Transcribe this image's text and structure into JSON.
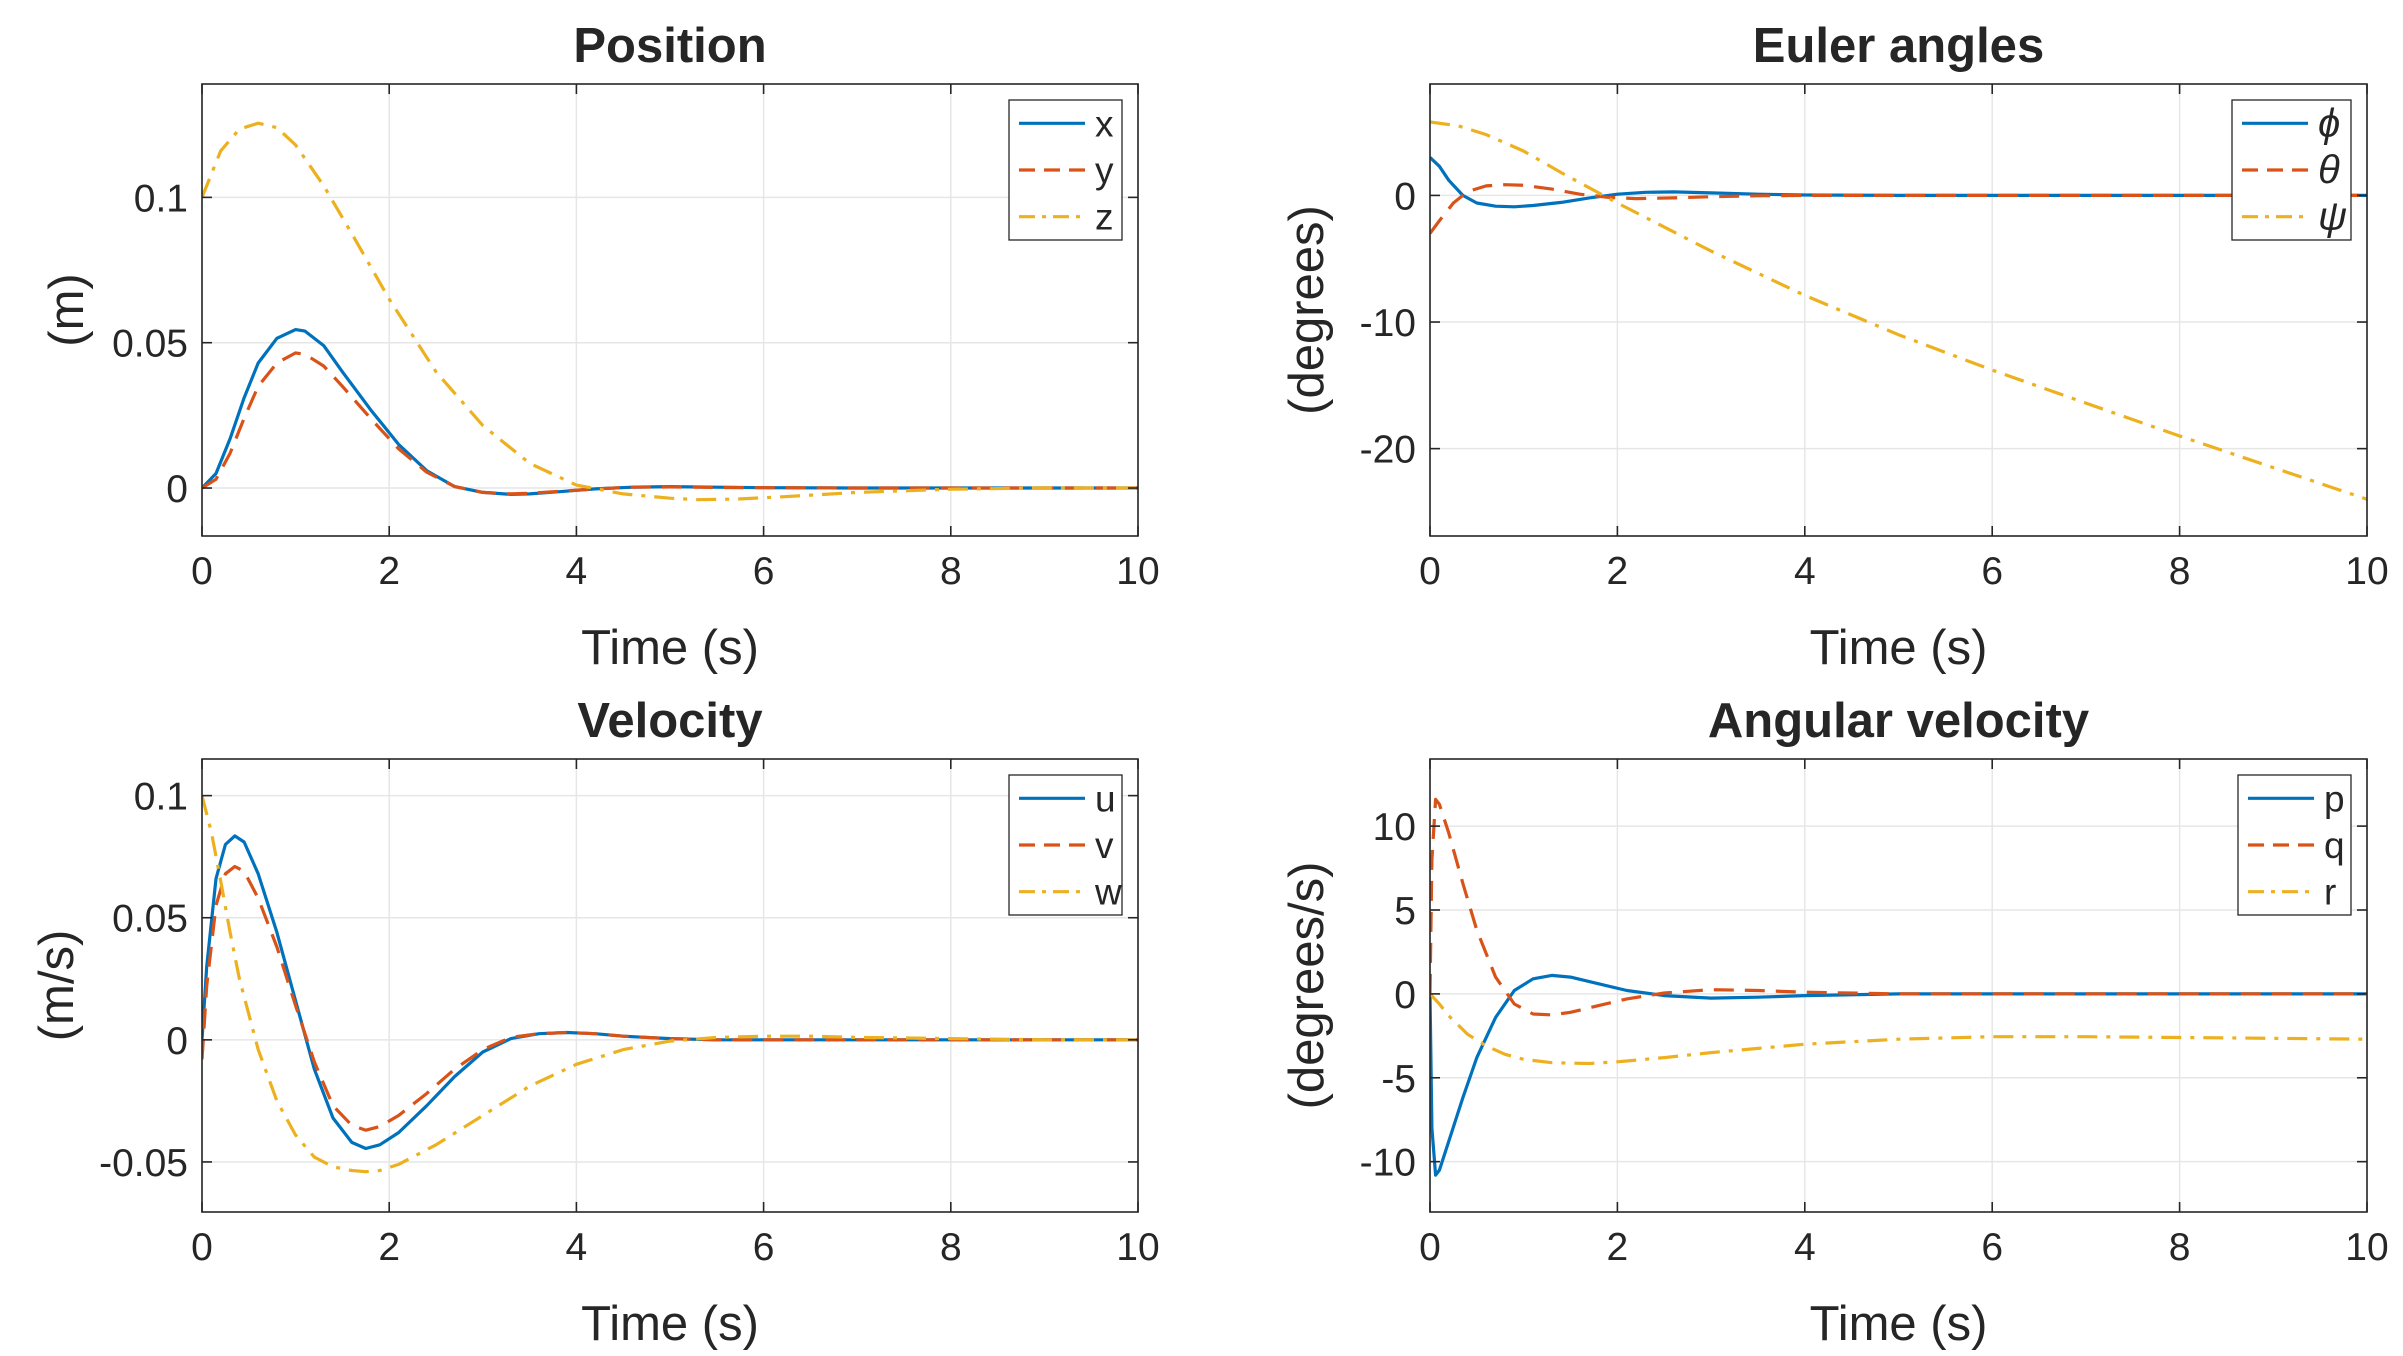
{
  "colors": {
    "series": [
      "#0072BD",
      "#D95319",
      "#EDB120"
    ],
    "axis": "#262626",
    "grid": "#e6e6e6"
  },
  "chart_data": [
    {
      "id": "position",
      "type": "line",
      "title": "Position",
      "xlabel": "Time (s)",
      "ylabel": "(m)",
      "xlim": [
        0,
        10
      ],
      "ylim": [
        -0.0165,
        0.139
      ],
      "xticks": [
        0,
        2,
        4,
        6,
        8,
        10
      ],
      "yticks": [
        0,
        0.05,
        0.1
      ],
      "xtick_labels": [
        "0",
        "2",
        "4",
        "6",
        "8",
        "10"
      ],
      "ytick_labels": [
        "0",
        "0.05",
        "0.1"
      ],
      "grid": true,
      "legend": "top-right",
      "series": [
        {
          "name": "x",
          "style": "solid",
          "x": [
            0,
            0.15,
            0.3,
            0.45,
            0.6,
            0.8,
            1.0,
            1.1,
            1.3,
            1.5,
            1.8,
            2.1,
            2.4,
            2.7,
            3.0,
            3.3,
            3.5,
            3.8,
            4.2,
            4.6,
            5.0,
            5.5,
            6.0,
            7.0,
            8.0,
            9.0,
            10.0
          ],
          "values": [
            0,
            0.005,
            0.017,
            0.031,
            0.043,
            0.0515,
            0.0545,
            0.054,
            0.049,
            0.04,
            0.027,
            0.015,
            0.006,
            0.0005,
            -0.0015,
            -0.0022,
            -0.002,
            -0.0013,
            -0.0003,
            0.0003,
            0.0005,
            0.0003,
            0.0001,
            0,
            0,
            0,
            0
          ]
        },
        {
          "name": "y",
          "style": "dashed",
          "x": [
            0,
            0.15,
            0.3,
            0.45,
            0.6,
            0.8,
            1.0,
            1.1,
            1.3,
            1.5,
            1.8,
            2.1,
            2.4,
            2.7,
            3.0,
            3.3,
            3.5,
            3.8,
            4.2,
            4.6,
            5.0,
            5.5,
            6.0,
            7.0,
            8.0,
            9.0,
            10.0
          ],
          "values": [
            0,
            0.003,
            0.012,
            0.024,
            0.035,
            0.043,
            0.0465,
            0.046,
            0.042,
            0.035,
            0.024,
            0.0135,
            0.0055,
            0.0005,
            -0.0015,
            -0.002,
            -0.0018,
            -0.0012,
            -0.0003,
            0.0003,
            0.0004,
            0.0002,
            0.0001,
            0,
            0,
            0,
            0
          ]
        },
        {
          "name": "z",
          "style": "dashdot",
          "x": [
            0,
            0.2,
            0.4,
            0.6,
            0.8,
            1.0,
            1.3,
            1.6,
            2.0,
            2.5,
            3.0,
            3.5,
            4.0,
            4.5,
            5.0,
            5.3,
            5.7,
            6.2,
            7.0,
            8.0,
            9.0,
            10.0
          ],
          "values": [
            0.1,
            0.116,
            0.1235,
            0.1255,
            0.124,
            0.118,
            0.104,
            0.0875,
            0.065,
            0.04,
            0.0215,
            0.0085,
            0.001,
            -0.002,
            -0.0035,
            -0.004,
            -0.0038,
            -0.003,
            -0.0015,
            -0.0004,
            0,
            0
          ]
        }
      ]
    },
    {
      "id": "euler-angles",
      "type": "line",
      "title": "Euler angles",
      "xlabel": "Time (s)",
      "ylabel": "(degrees)",
      "xlim": [
        0,
        10
      ],
      "ylim": [
        -26.9,
        8.8
      ],
      "xticks": [
        0,
        2,
        4,
        6,
        8,
        10
      ],
      "yticks": [
        -20,
        -10,
        0
      ],
      "xtick_labels": [
        "0",
        "2",
        "4",
        "6",
        "8",
        "10"
      ],
      "ytick_labels": [
        "-20",
        "-10",
        "0"
      ],
      "grid": true,
      "legend": "top-right",
      "series": [
        {
          "name": "ϕ",
          "style": "solid",
          "x": [
            0,
            0.1,
            0.2,
            0.35,
            0.5,
            0.7,
            0.9,
            1.1,
            1.4,
            1.7,
            2.0,
            2.3,
            2.6,
            3.0,
            3.5,
            4.0,
            5.0,
            6.0,
            8.0,
            10.0
          ],
          "values": [
            3.0,
            2.3,
            1.2,
            0.0,
            -0.6,
            -0.85,
            -0.9,
            -0.8,
            -0.55,
            -0.2,
            0.1,
            0.25,
            0.28,
            0.2,
            0.1,
            0.03,
            0,
            0,
            0,
            0
          ]
        },
        {
          "name": "θ",
          "style": "dashed",
          "x": [
            0,
            0.1,
            0.25,
            0.4,
            0.6,
            0.8,
            1.0,
            1.3,
            1.6,
            1.9,
            2.2,
            2.6,
            3.0,
            3.5,
            4.0,
            5.0,
            6.0,
            8.0,
            10.0
          ],
          "values": [
            -3.0,
            -2.0,
            -0.6,
            0.3,
            0.75,
            0.85,
            0.8,
            0.5,
            0.1,
            -0.15,
            -0.25,
            -0.2,
            -0.1,
            -0.03,
            0,
            0,
            0,
            0,
            0
          ]
        },
        {
          "name": "ψ",
          "style": "dashdot",
          "x": [
            0,
            0.3,
            0.6,
            1.0,
            1.4,
            1.8,
            2.0,
            3.0,
            4.0,
            5.0,
            6.0,
            7.0,
            8.0,
            9.0,
            10.0
          ],
          "values": [
            5.8,
            5.5,
            4.8,
            3.5,
            1.8,
            0.2,
            -0.6,
            -4.4,
            -7.9,
            -11.0,
            -13.8,
            -16.4,
            -19.0,
            -21.5,
            -24.0
          ]
        }
      ]
    },
    {
      "id": "velocity",
      "type": "line",
      "title": "Velocity",
      "xlabel": "Time (s)",
      "ylabel": "(m/s)",
      "xlim": [
        0,
        10
      ],
      "ylim": [
        -0.0705,
        0.115
      ],
      "xticks": [
        0,
        2,
        4,
        6,
        8,
        10
      ],
      "yticks": [
        -0.05,
        0,
        0.05,
        0.1
      ],
      "xtick_labels": [
        "0",
        "2",
        "4",
        "6",
        "8",
        "10"
      ],
      "ytick_labels": [
        "-0.05",
        "0",
        "0.05",
        "0.1"
      ],
      "grid": true,
      "legend": "top-right",
      "series": [
        {
          "name": "u",
          "style": "solid",
          "x": [
            0,
            0.05,
            0.15,
            0.25,
            0.35,
            0.45,
            0.6,
            0.8,
            1.0,
            1.2,
            1.4,
            1.6,
            1.75,
            1.9,
            2.1,
            2.4,
            2.7,
            3.0,
            3.3,
            3.6,
            3.9,
            4.2,
            4.5,
            5.0,
            5.5,
            6.0,
            7.0,
            8.0,
            10.0
          ],
          "values": [
            0,
            0.03,
            0.066,
            0.08,
            0.0835,
            0.081,
            0.068,
            0.044,
            0.016,
            -0.012,
            -0.032,
            -0.042,
            -0.0445,
            -0.043,
            -0.038,
            -0.027,
            -0.015,
            -0.005,
            0.0005,
            0.0025,
            0.003,
            0.0025,
            0.0015,
            0.0005,
            0,
            0,
            0,
            0,
            0
          ]
        },
        {
          "name": "v",
          "style": "dashed",
          "x": [
            0,
            0.05,
            0.15,
            0.25,
            0.35,
            0.45,
            0.6,
            0.8,
            1.0,
            1.2,
            1.4,
            1.6,
            1.75,
            1.9,
            2.1,
            2.4,
            2.7,
            3.0,
            3.3,
            3.6,
            3.9,
            4.2,
            4.5,
            5.0,
            5.5,
            6.0,
            7.0,
            8.0,
            10.0
          ],
          "values": [
            -0.008,
            0.022,
            0.055,
            0.068,
            0.071,
            0.069,
            0.058,
            0.038,
            0.014,
            -0.009,
            -0.027,
            -0.035,
            -0.037,
            -0.0355,
            -0.031,
            -0.022,
            -0.012,
            -0.004,
            0.001,
            0.0025,
            0.003,
            0.0025,
            0.0015,
            0.0005,
            0,
            0,
            0,
            0,
            0
          ]
        },
        {
          "name": "w",
          "style": "dashdot",
          "x": [
            0,
            0.1,
            0.2,
            0.3,
            0.4,
            0.6,
            0.8,
            1.0,
            1.2,
            1.4,
            1.6,
            1.75,
            1.9,
            2.1,
            2.5,
            3.0,
            3.5,
            4.0,
            4.5,
            5.0,
            5.5,
            6.0,
            6.5,
            7.0,
            8.0,
            9.0,
            10.0
          ],
          "values": [
            0.1,
            0.085,
            0.065,
            0.044,
            0.025,
            -0.004,
            -0.025,
            -0.039,
            -0.048,
            -0.052,
            -0.0535,
            -0.054,
            -0.0535,
            -0.051,
            -0.043,
            -0.031,
            -0.019,
            -0.01,
            -0.004,
            -0.0005,
            0.001,
            0.0015,
            0.0015,
            0.001,
            0.0005,
            0,
            0
          ]
        }
      ]
    },
    {
      "id": "angular-velocity",
      "type": "line",
      "title": "Angular velocity",
      "xlabel": "Time (s)",
      "ylabel": "(degrees/s)",
      "xlim": [
        0,
        10
      ],
      "ylim": [
        -13.0,
        14.0
      ],
      "xticks": [
        0,
        2,
        4,
        6,
        8,
        10
      ],
      "yticks": [
        -10,
        -5,
        0,
        5,
        10
      ],
      "xtick_labels": [
        "0",
        "2",
        "4",
        "6",
        "8",
        "10"
      ],
      "ytick_labels": [
        "-10",
        "-5",
        "0",
        "5",
        "10"
      ],
      "grid": true,
      "legend": "top-right",
      "series": [
        {
          "name": "p",
          "style": "solid",
          "x": [
            0,
            0.02,
            0.06,
            0.1,
            0.2,
            0.35,
            0.5,
            0.7,
            0.9,
            1.1,
            1.3,
            1.5,
            1.8,
            2.1,
            2.5,
            3.0,
            3.5,
            4.0,
            5.0,
            6.0,
            8.0,
            10.0
          ],
          "values": [
            0,
            -8.0,
            -10.8,
            -10.5,
            -8.8,
            -6.2,
            -3.8,
            -1.4,
            0.2,
            0.9,
            1.1,
            1.0,
            0.6,
            0.2,
            -0.1,
            -0.25,
            -0.2,
            -0.1,
            0,
            0,
            0,
            0
          ]
        },
        {
          "name": "q",
          "style": "dashed",
          "x": [
            0,
            0.02,
            0.06,
            0.1,
            0.2,
            0.35,
            0.5,
            0.7,
            0.9,
            1.1,
            1.3,
            1.5,
            1.8,
            2.1,
            2.5,
            3.0,
            3.5,
            4.0,
            5.0,
            6.0,
            8.0,
            10.0
          ],
          "values": [
            0,
            8.0,
            11.6,
            11.3,
            9.6,
            6.6,
            3.8,
            1.0,
            -0.6,
            -1.2,
            -1.25,
            -1.1,
            -0.7,
            -0.3,
            0.05,
            0.25,
            0.2,
            0.1,
            0,
            0,
            0,
            0
          ]
        },
        {
          "name": "r",
          "style": "dashdot",
          "x": [
            0,
            0.1,
            0.2,
            0.4,
            0.6,
            0.8,
            1.0,
            1.3,
            1.7,
            2.0,
            2.5,
            3.0,
            3.5,
            4.0,
            5.0,
            6.0,
            7.0,
            8.0,
            9.0,
            10.0
          ],
          "values": [
            0,
            -0.6,
            -1.3,
            -2.4,
            -3.1,
            -3.6,
            -3.9,
            -4.1,
            -4.15,
            -4.05,
            -3.8,
            -3.5,
            -3.25,
            -3.0,
            -2.7,
            -2.55,
            -2.55,
            -2.6,
            -2.65,
            -2.7
          ]
        }
      ]
    }
  ]
}
